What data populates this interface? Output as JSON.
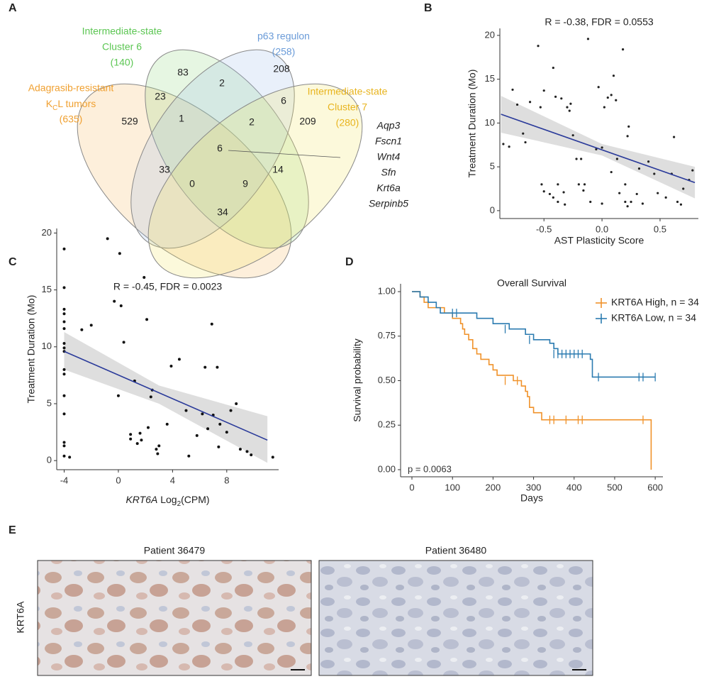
{
  "panels": [
    "A",
    "B",
    "C",
    "D",
    "E"
  ],
  "venn": {
    "sets": [
      {
        "lines": [
          "Adagrasib-resistant"
        ],
        "k": "K",
        "sub": "C",
        "rest": "L tumors",
        "count": "(635)",
        "color": "#f0a030",
        "fill": "#f6b45a"
      },
      {
        "lines": [
          "Intermediate-state",
          "Cluster 6"
        ],
        "count": "(140)",
        "color": "#5cc653",
        "fill": "#8fd47a"
      },
      {
        "lines": [
          "p63 regulon"
        ],
        "count": "(258)",
        "color": "#6a9bd8",
        "fill": "#9bb9e8"
      },
      {
        "lines": [
          "Intermediate-state",
          "Cluster 7"
        ],
        "count": "(280)",
        "color": "#e8b41e",
        "fill": "#f2e35a"
      }
    ],
    "regions": [
      83,
      2,
      208,
      23,
      6,
      1,
      529,
      2,
      209,
      6,
      33,
      14,
      0,
      9,
      34
    ],
    "genes": [
      "Aqp3",
      "Fscn1",
      "Wnt4",
      "Sfn",
      "Krt6a",
      "Serpinb5"
    ]
  },
  "chart_data": [
    {
      "type": "scatter",
      "annotation": "R = -0.38, FDR = 0.0553",
      "xlabel": "AST Plasticity Score",
      "ylabel": "Treatment Duration (Mo)",
      "xlim": [
        -0.88,
        0.83
      ],
      "ylim": [
        -0.9,
        20.8
      ],
      "xticks": [
        -0.5,
        {
          "value": 0,
          "label": "0.0"
        },
        0.5
      ],
      "yticks": [
        0,
        5,
        10,
        15,
        20
      ],
      "point_color": "#222222",
      "line_color": "#2a3a9a",
      "band_color": "#bdbdbd",
      "x": [
        -0.85,
        -0.8,
        -0.77,
        -0.73,
        -0.68,
        -0.66,
        -0.62,
        -0.55,
        -0.53,
        -0.52,
        -0.5,
        -0.5,
        -0.45,
        -0.42,
        -0.42,
        -0.4,
        -0.38,
        -0.38,
        -0.35,
        -0.33,
        -0.32,
        -0.3,
        -0.28,
        -0.27,
        -0.25,
        -0.22,
        -0.2,
        -0.18,
        -0.16,
        -0.15,
        -0.12,
        -0.1,
        -0.05,
        -0.03,
        0.0,
        0.0,
        0.02,
        0.05,
        0.08,
        0.08,
        0.1,
        0.12,
        0.13,
        0.15,
        0.18,
        0.2,
        0.2,
        0.22,
        0.22,
        0.23,
        0.25,
        0.3,
        0.32,
        0.35,
        0.4,
        0.45,
        0.48,
        0.55,
        0.6,
        0.62,
        0.65,
        0.68,
        0.7,
        0.75,
        0.78
      ],
      "values": [
        7.6,
        7.3,
        13.8,
        12.1,
        8.8,
        7.8,
        12.4,
        18.8,
        11.8,
        3.0,
        13.7,
        2.2,
        1.9,
        1.5,
        16.3,
        13.0,
        1.0,
        3.0,
        12.8,
        2.1,
        0.7,
        11.8,
        11.4,
        12.2,
        8.6,
        5.9,
        3.0,
        5.9,
        2.3,
        3.0,
        19.6,
        1.0,
        7.0,
        14.1,
        7.2,
        0.8,
        11.8,
        12.9,
        13.2,
        4.4,
        15.4,
        12.6,
        5.9,
        2.0,
        18.4,
        3.0,
        1.0,
        0.5,
        8.5,
        9.6,
        1.0,
        1.9,
        4.8,
        0.8,
        5.6,
        4.2,
        2.0,
        1.5,
        4.2,
        8.4,
        1.0,
        0.7,
        2.5,
        3.5,
        4.6
      ],
      "fit": {
        "x": [
          -0.87,
          0.8
        ],
        "y": [
          11.0,
          3.2
        ]
      },
      "band": {
        "x": [
          -0.87,
          0.0,
          0.8
        ],
        "lower": [
          8.9,
          6.3,
          1.4
        ],
        "upper": [
          13.1,
          7.6,
          5.0
        ]
      }
    },
    {
      "type": "scatter",
      "annotation": "R = -0.45, FDR = 0.0023",
      "xlabel": {
        "gene": "KRT6A",
        "text": " Log",
        "sub": "2",
        "rest": "(CPM)"
      },
      "ylabel": "Treatment Duration (Mo)",
      "xlim": [
        -4.55,
        11.83
      ],
      "ylim": [
        -0.8,
        20.4
      ],
      "xticks": [
        -4,
        0,
        4,
        8
      ],
      "yticks": [
        0,
        5,
        10,
        15,
        20
      ],
      "point_color": "#111111",
      "line_color": "#2a3a9a",
      "band_color": "#bdbdbd",
      "x": [
        -4,
        -4,
        -4,
        -4,
        -4,
        -4,
        -4,
        -4,
        -4,
        -4,
        -4,
        -4,
        -4,
        -4,
        -4,
        -4,
        -3.6,
        -2.7,
        -2,
        -0.8,
        -0.3,
        0.1,
        0.2,
        0,
        0.4,
        0.9,
        0.9,
        1.2,
        1.4,
        1.6,
        1.7,
        1.9,
        2.1,
        2.2,
        2.4,
        2.5,
        2.8,
        2.9,
        3.0,
        3.6,
        3.9,
        4.5,
        5.0,
        5.2,
        5.8,
        6.2,
        6.4,
        6.6,
        6.9,
        7.0,
        7.3,
        7.4,
        7.5,
        8.3,
        8.7,
        9.0,
        9.5,
        9.8,
        11.4,
        8.0
      ],
      "values": [
        18.6,
        15.2,
        13.3,
        12.9,
        12.2,
        11.6,
        10.3,
        9.9,
        9.6,
        8.0,
        7.6,
        5.7,
        4.1,
        1.6,
        1.3,
        0.4,
        0.3,
        11.5,
        11.9,
        19.5,
        14,
        18.2,
        13.6,
        5.7,
        10.4,
        2.3,
        1.9,
        7,
        1.5,
        2.4,
        1.8,
        16.1,
        12.4,
        2.9,
        5.6,
        6.2,
        1.0,
        0.6,
        1.3,
        3.2,
        8.3,
        8.9,
        4.4,
        0.4,
        2.2,
        4.1,
        8.2,
        2.8,
        12.0,
        4.0,
        8.2,
        1.2,
        3.2,
        4.4,
        5.0,
        1.0,
        0.8,
        0.5,
        0.3,
        2.5
      ],
      "fit": {
        "x": [
          -4,
          11
        ],
        "y": [
          9.6,
          1.8
        ]
      },
      "band": {
        "x": [
          -4,
          3,
          11
        ],
        "lower": [
          8.0,
          5.0,
          -0.2
        ],
        "upper": [
          11.3,
          6.6,
          3.9
        ]
      }
    },
    {
      "type": "survival",
      "title": "Overall Survival",
      "annotation": "p = 0.0063",
      "xlabel": "Days",
      "ylabel": "Survival probability",
      "xlim": [
        -28,
        619
      ],
      "ylim": [
        -0.04,
        1.044
      ],
      "xticks": [
        0,
        100,
        200,
        300,
        400,
        500,
        600
      ],
      "yticks": [
        {
          "value": 0,
          "label": "0.00"
        },
        {
          "value": 0.25,
          "label": "0.25"
        },
        {
          "value": 0.5,
          "label": "0.50"
        },
        {
          "value": 0.75,
          "label": "0.75"
        },
        {
          "value": 1,
          "label": "1.00"
        }
      ],
      "legend": "top-right",
      "series": [
        {
          "name": "KRT6A High, n = 34",
          "color": "#f0922a",
          "x": [
            0,
            20,
            30,
            40,
            80,
            100,
            120,
            125,
            130,
            140,
            150,
            160,
            170,
            190,
            200,
            210,
            250,
            270,
            280,
            285,
            290,
            300,
            320,
            590
          ],
          "values": [
            1,
            0.97,
            0.94,
            0.91,
            0.88,
            0.85,
            0.82,
            0.79,
            0.76,
            0.73,
            0.68,
            0.65,
            0.62,
            0.59,
            0.56,
            0.53,
            0.5,
            0.47,
            0.44,
            0.41,
            0.35,
            0.32,
            0.28,
            0
          ],
          "censor_x": [
            230,
            260,
            340,
            350,
            380,
            410,
            420,
            570
          ],
          "censor_values": [
            0.5,
            0.5,
            0.28,
            0.28,
            0.28,
            0.28,
            0.28,
            0.28
          ]
        },
        {
          "name": "KRT6A Low, n = 34",
          "color": "#2b7bb0",
          "x": [
            0,
            20,
            40,
            60,
            70,
            160,
            200,
            240,
            280,
            300,
            340,
            350,
            360,
            440,
            445
          ],
          "values": [
            1,
            0.97,
            0.94,
            0.91,
            0.88,
            0.85,
            0.82,
            0.79,
            0.76,
            0.73,
            0.71,
            0.68,
            0.65,
            0.62,
            0.52
          ],
          "censor_x": [
            100,
            110,
            230,
            290,
            350,
            360,
            370,
            380,
            390,
            400,
            410,
            420,
            460,
            560,
            570,
            600
          ],
          "censor_values": [
            0.88,
            0.88,
            0.79,
            0.73,
            0.65,
            0.65,
            0.65,
            0.65,
            0.65,
            0.65,
            0.65,
            0.65,
            0.52,
            0.52,
            0.52,
            0.52
          ]
        }
      ]
    }
  ],
  "ihc": {
    "row_label": "KRT6A",
    "images": [
      "Patient 36479",
      "Patient 36480"
    ]
  }
}
